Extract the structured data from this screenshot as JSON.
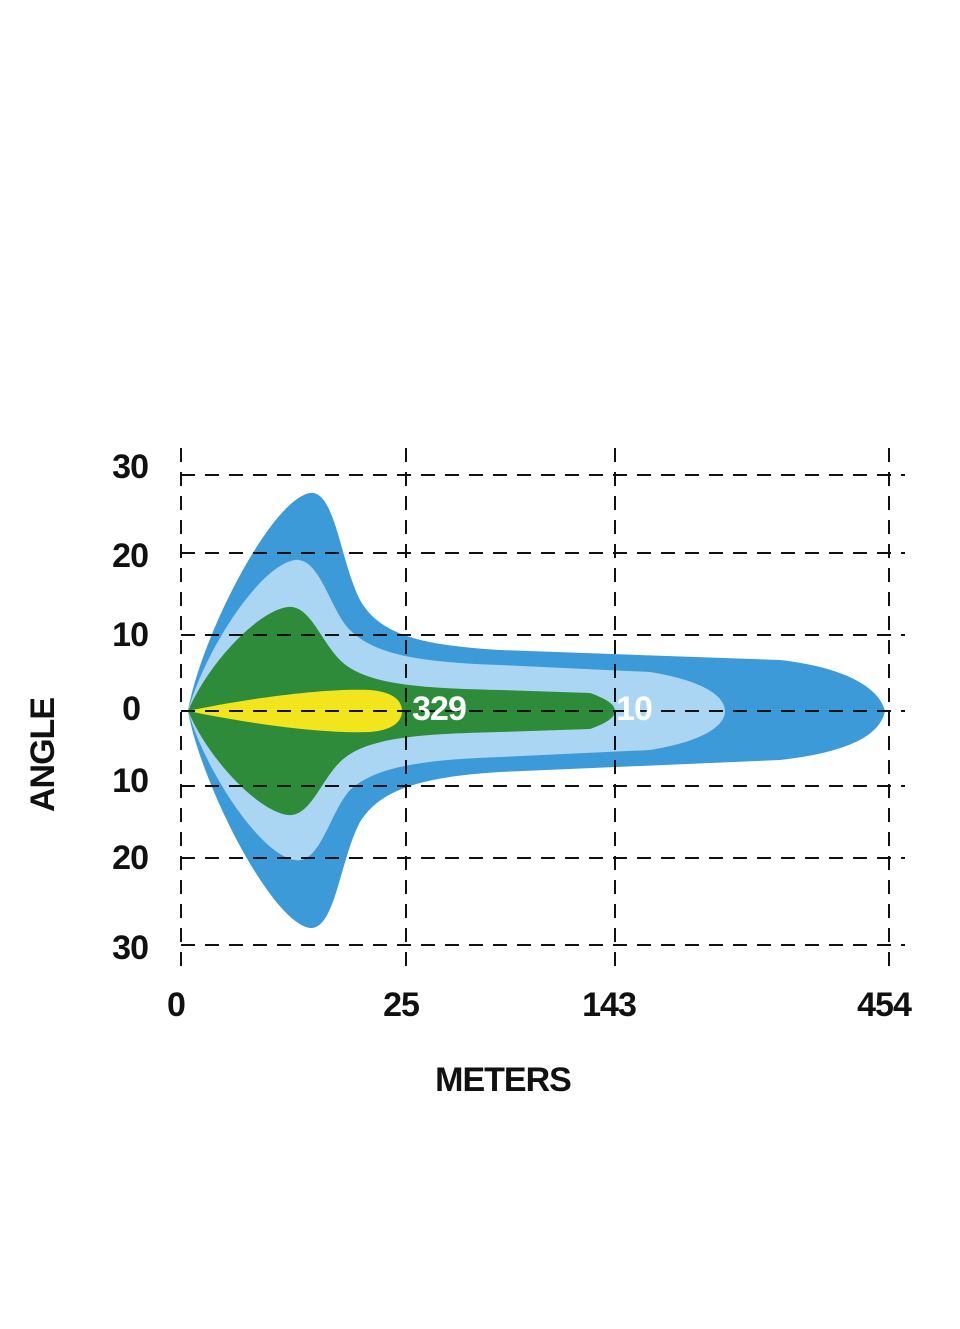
{
  "axes": {
    "y_title": "ANGLE",
    "x_title": "METERS",
    "y_labels": [
      "30",
      "20",
      "10",
      "0",
      "10",
      "20",
      "30"
    ],
    "x_labels": [
      "0",
      "25",
      "143",
      "454"
    ]
  },
  "zones": {
    "labels": [
      "329",
      "10"
    ]
  }
}
